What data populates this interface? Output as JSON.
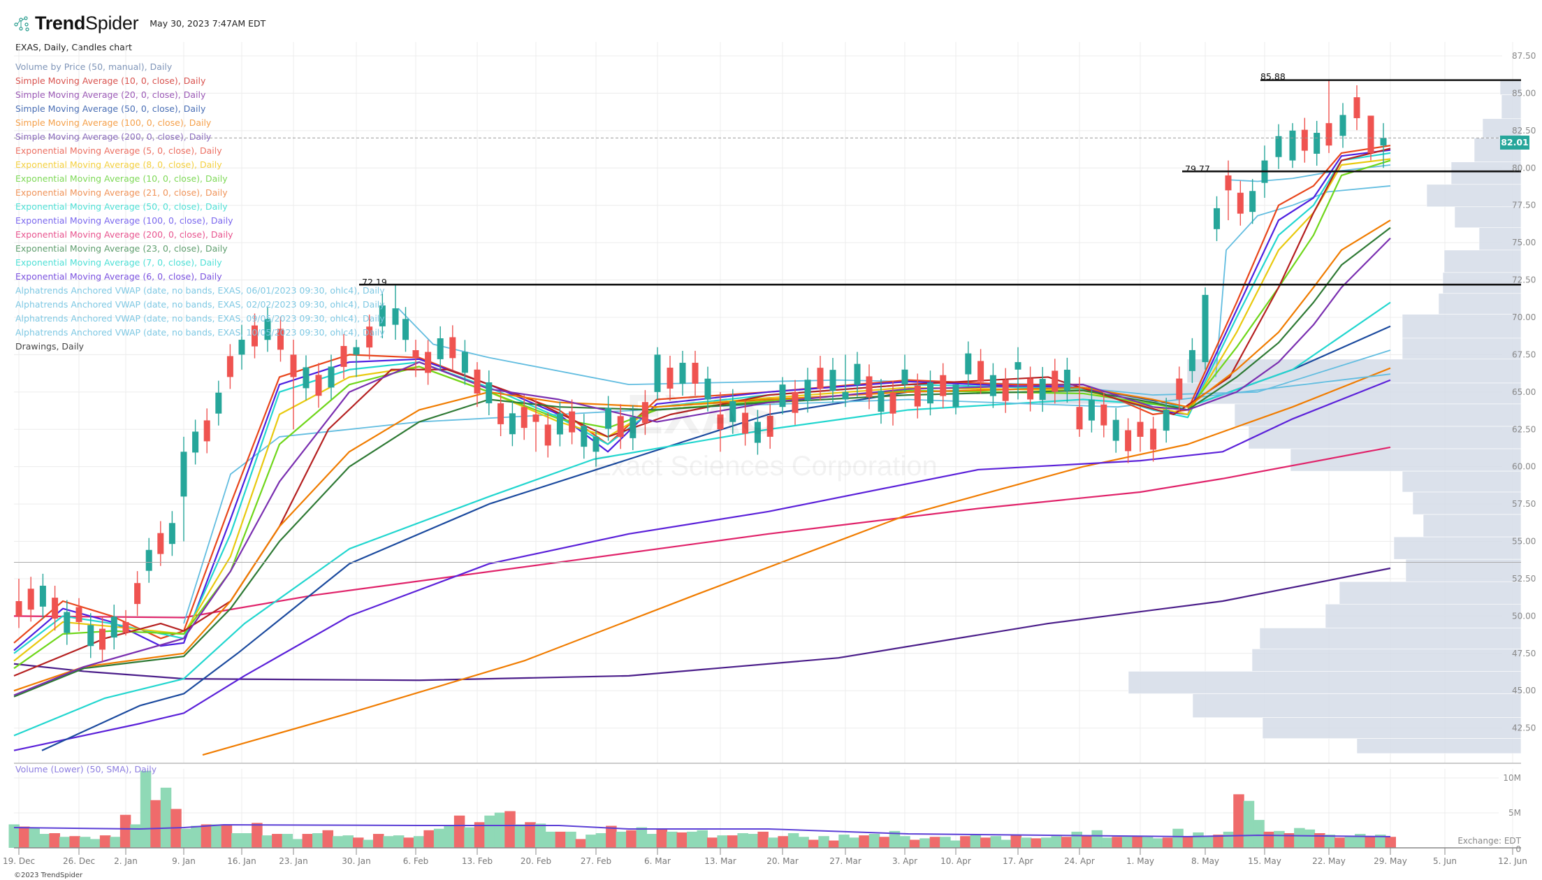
{
  "header": {
    "brand_bold": "Trend",
    "brand_light": "Spider",
    "timestamp": "May 30, 2023 7:47AM EDT",
    "subtitle": "EXAS, Daily, Candles chart"
  },
  "legend": [
    {
      "label": "Volume by Price (50, manual), Daily",
      "color": "#7f95b8"
    },
    {
      "label": "Simple Moving Average (10, 0, close), Daily",
      "color": "#d9534f"
    },
    {
      "label": "Simple Moving Average (20, 0, close), Daily",
      "color": "#9b59b6"
    },
    {
      "label": "Simple Moving Average (50, 0, close), Daily",
      "color": "#4a6fb5"
    },
    {
      "label": "Simple Moving Average (100, 0, close), Daily",
      "color": "#f5a04a"
    },
    {
      "label": "Simple Moving Average (200, 0, close), Daily",
      "color": "#8e6fbf"
    },
    {
      "label": "Exponential Moving Average (5, 0, close), Daily",
      "color": "#ec7063"
    },
    {
      "label": "Exponential Moving Average (8, 0, close), Daily",
      "color": "#f4d03f"
    },
    {
      "label": "Exponential Moving Average (10, 0, close), Daily",
      "color": "#7ed957"
    },
    {
      "label": "Exponential Moving Average (21, 0, close), Daily",
      "color": "#f0945a"
    },
    {
      "label": "Exponential Moving Average (50, 0, close), Daily",
      "color": "#4fe0d6"
    },
    {
      "label": "Exponential Moving Average (100, 0, close), Daily",
      "color": "#7b68ee"
    },
    {
      "label": "Exponential Moving Average (200, 0, close), Daily",
      "color": "#e8558f"
    },
    {
      "label": "Exponential Moving Average (23, 0, close), Daily",
      "color": "#5f9e6e"
    },
    {
      "label": "Exponential Moving Average (7, 0, close), Daily",
      "color": "#4fe0d6"
    },
    {
      "label": "Exponential Moving Average (6, 0, close), Daily",
      "color": "#7b52e0"
    },
    {
      "label": "Alphatrends Anchored VWAP (date, no bands, EXAS, 06/01/2023 09:30, ohlc4), Daily",
      "color": "#7ec8e3"
    },
    {
      "label": "Alphatrends Anchored VWAP (date, no bands, EXAS, 02/02/2023 09:30, ohlc4), Daily",
      "color": "#7ec8e3"
    },
    {
      "label": "Alphatrends Anchored VWAP (date, no bands, EXAS, 09/05/2023 09:30, ohlc4), Daily",
      "color": "#7ec8e3"
    },
    {
      "label": "Alphatrends Anchored VWAP (date, no bands, EXAS, 10/05/2023 09:30, ohlc4), Daily",
      "color": "#7ec8e3"
    },
    {
      "label": "Drawings, Daily",
      "color": "#444444"
    }
  ],
  "watermark": {
    "ticker": "EXAS",
    "company": "Exact Sciences Corporation"
  },
  "price_tag": "82.01",
  "volume_title": "Volume (Lower) (50, SMA), Daily",
  "exchange_label": "Exchange: EDT",
  "footer": "©2023 TrendSpider",
  "colors": {
    "up": "#26a69a",
    "down": "#ef5350",
    "vol_up": "#8fd9b6",
    "vol_down": "#ef6b6b",
    "vbp": "#d5dce8",
    "hline": "#111111"
  },
  "chart_data": {
    "type": "candlestick",
    "title": "EXAS, Daily, Candles chart",
    "y_axis": {
      "ticks": [
        "87.50",
        "85.00",
        "82.50",
        "80.00",
        "77.50",
        "75.00",
        "72.50",
        "70.00",
        "67.50",
        "65.00",
        "62.50",
        "60.00",
        "57.50",
        "55.00",
        "52.50",
        "50.00",
        "47.50",
        "45.00",
        "42.50"
      ],
      "range": [
        41,
        88.5
      ]
    },
    "x_axis": {
      "ticks": [
        "19. Dec",
        "26. Dec",
        "2. Jan",
        "9. Jan",
        "16. Jan",
        "23. Jan",
        "30. Jan",
        "6. Feb",
        "13. Feb",
        "20. Feb",
        "27. Feb",
        "6. Mar",
        "13. Mar",
        "20. Mar",
        "27. Mar",
        "3. Apr",
        "10. Apr",
        "17. Apr",
        "24. Apr",
        "1. May",
        "8. May",
        "15. May",
        "22. May",
        "29. May",
        "5. Jun",
        "12. Jun"
      ]
    },
    "horizontal_levels": [
      {
        "label": "85.88",
        "value": 85.88,
        "x_start_date": "15. May"
      },
      {
        "label": "79.77",
        "value": 79.77,
        "x_start_date": "8. May"
      },
      {
        "label": "72.19",
        "value": 72.19,
        "x_start_date": "30. Jan"
      }
    ],
    "last_price": 82.01,
    "volume_axis": {
      "ticks": [
        "10M",
        "5M",
        "0"
      ]
    },
    "candles_approx": [
      {
        "date": "19. Dec",
        "o": 51.0,
        "h": 52.5,
        "l": 49.2,
        "c": 50.0
      },
      {
        "date": "26. Dec",
        "o": 50.6,
        "h": 51.2,
        "l": 49.0,
        "c": 49.6
      },
      {
        "date": "2. Jan",
        "o": 49.6,
        "h": 50.4,
        "l": 48.7,
        "c": 48.9
      },
      {
        "date": "9. Jan",
        "o": 58.0,
        "h": 62.0,
        "l": 55.0,
        "c": 61.0
      },
      {
        "date": "16. Jan",
        "o": 67.5,
        "h": 69.5,
        "l": 66.5,
        "c": 68.5
      },
      {
        "date": "23. Jan",
        "o": 67.5,
        "h": 68.5,
        "l": 62.5,
        "c": 66.0
      },
      {
        "date": "30. Jan",
        "o": 67.5,
        "h": 68.5,
        "l": 66.0,
        "c": 68.0
      },
      {
        "date": "2. Feb",
        "o": 69.5,
        "h": 72.19,
        "l": 68.5,
        "c": 70.6
      },
      {
        "date": "6. Feb",
        "o": 67.8,
        "h": 68.5,
        "l": 66.0,
        "c": 67.3
      },
      {
        "date": "13. Feb",
        "o": 66.5,
        "h": 67.0,
        "l": 64.0,
        "c": 64.9
      },
      {
        "date": "20. Feb",
        "o": 63.5,
        "h": 64.5,
        "l": 61.0,
        "c": 63.0
      },
      {
        "date": "27. Feb",
        "o": 61.0,
        "h": 62.5,
        "l": 60.0,
        "c": 62.0
      },
      {
        "date": "6. Mar",
        "o": 65.0,
        "h": 68.0,
        "l": 64.5,
        "c": 67.5
      },
      {
        "date": "13. Mar",
        "o": 63.5,
        "h": 65.0,
        "l": 61.0,
        "c": 62.5
      },
      {
        "date": "20. Mar",
        "o": 64.0,
        "h": 66.0,
        "l": 63.5,
        "c": 65.5
      },
      {
        "date": "27. Mar",
        "o": 64.5,
        "h": 67.5,
        "l": 64.0,
        "c": 65.0
      },
      {
        "date": "3. Apr",
        "o": 65.5,
        "h": 67.5,
        "l": 65.0,
        "c": 66.5
      },
      {
        "date": "10. Apr",
        "o": 64.0,
        "h": 65.5,
        "l": 63.5,
        "c": 65.5
      },
      {
        "date": "17. Apr",
        "o": 66.5,
        "h": 68.0,
        "l": 64.5,
        "c": 67.0
      },
      {
        "date": "24. Apr",
        "o": 64.0,
        "h": 66.0,
        "l": 62.0,
        "c": 62.5
      },
      {
        "date": "1. May",
        "o": 63.0,
        "h": 64.0,
        "l": 61.0,
        "c": 62.0
      },
      {
        "date": "8. May",
        "o": 67.0,
        "h": 72.0,
        "l": 66.5,
        "c": 71.5
      },
      {
        "date": "10. May",
        "o": 79.5,
        "h": 80.5,
        "l": 76.5,
        "c": 78.5
      },
      {
        "date": "15. May",
        "o": 79.0,
        "h": 81.5,
        "l": 78.0,
        "c": 80.5
      },
      {
        "date": "18. May",
        "o": 80.5,
        "h": 83.0,
        "l": 80.0,
        "c": 82.5
      },
      {
        "date": "22. May",
        "o": 83.0,
        "h": 85.88,
        "l": 81.0,
        "c": 81.5
      },
      {
        "date": "24. May",
        "o": 83.5,
        "h": 83.5,
        "l": 80.5,
        "c": 81.0
      },
      {
        "date": "26. May",
        "o": 81.5,
        "h": 83.0,
        "l": 80.0,
        "c": 82.01
      }
    ]
  }
}
